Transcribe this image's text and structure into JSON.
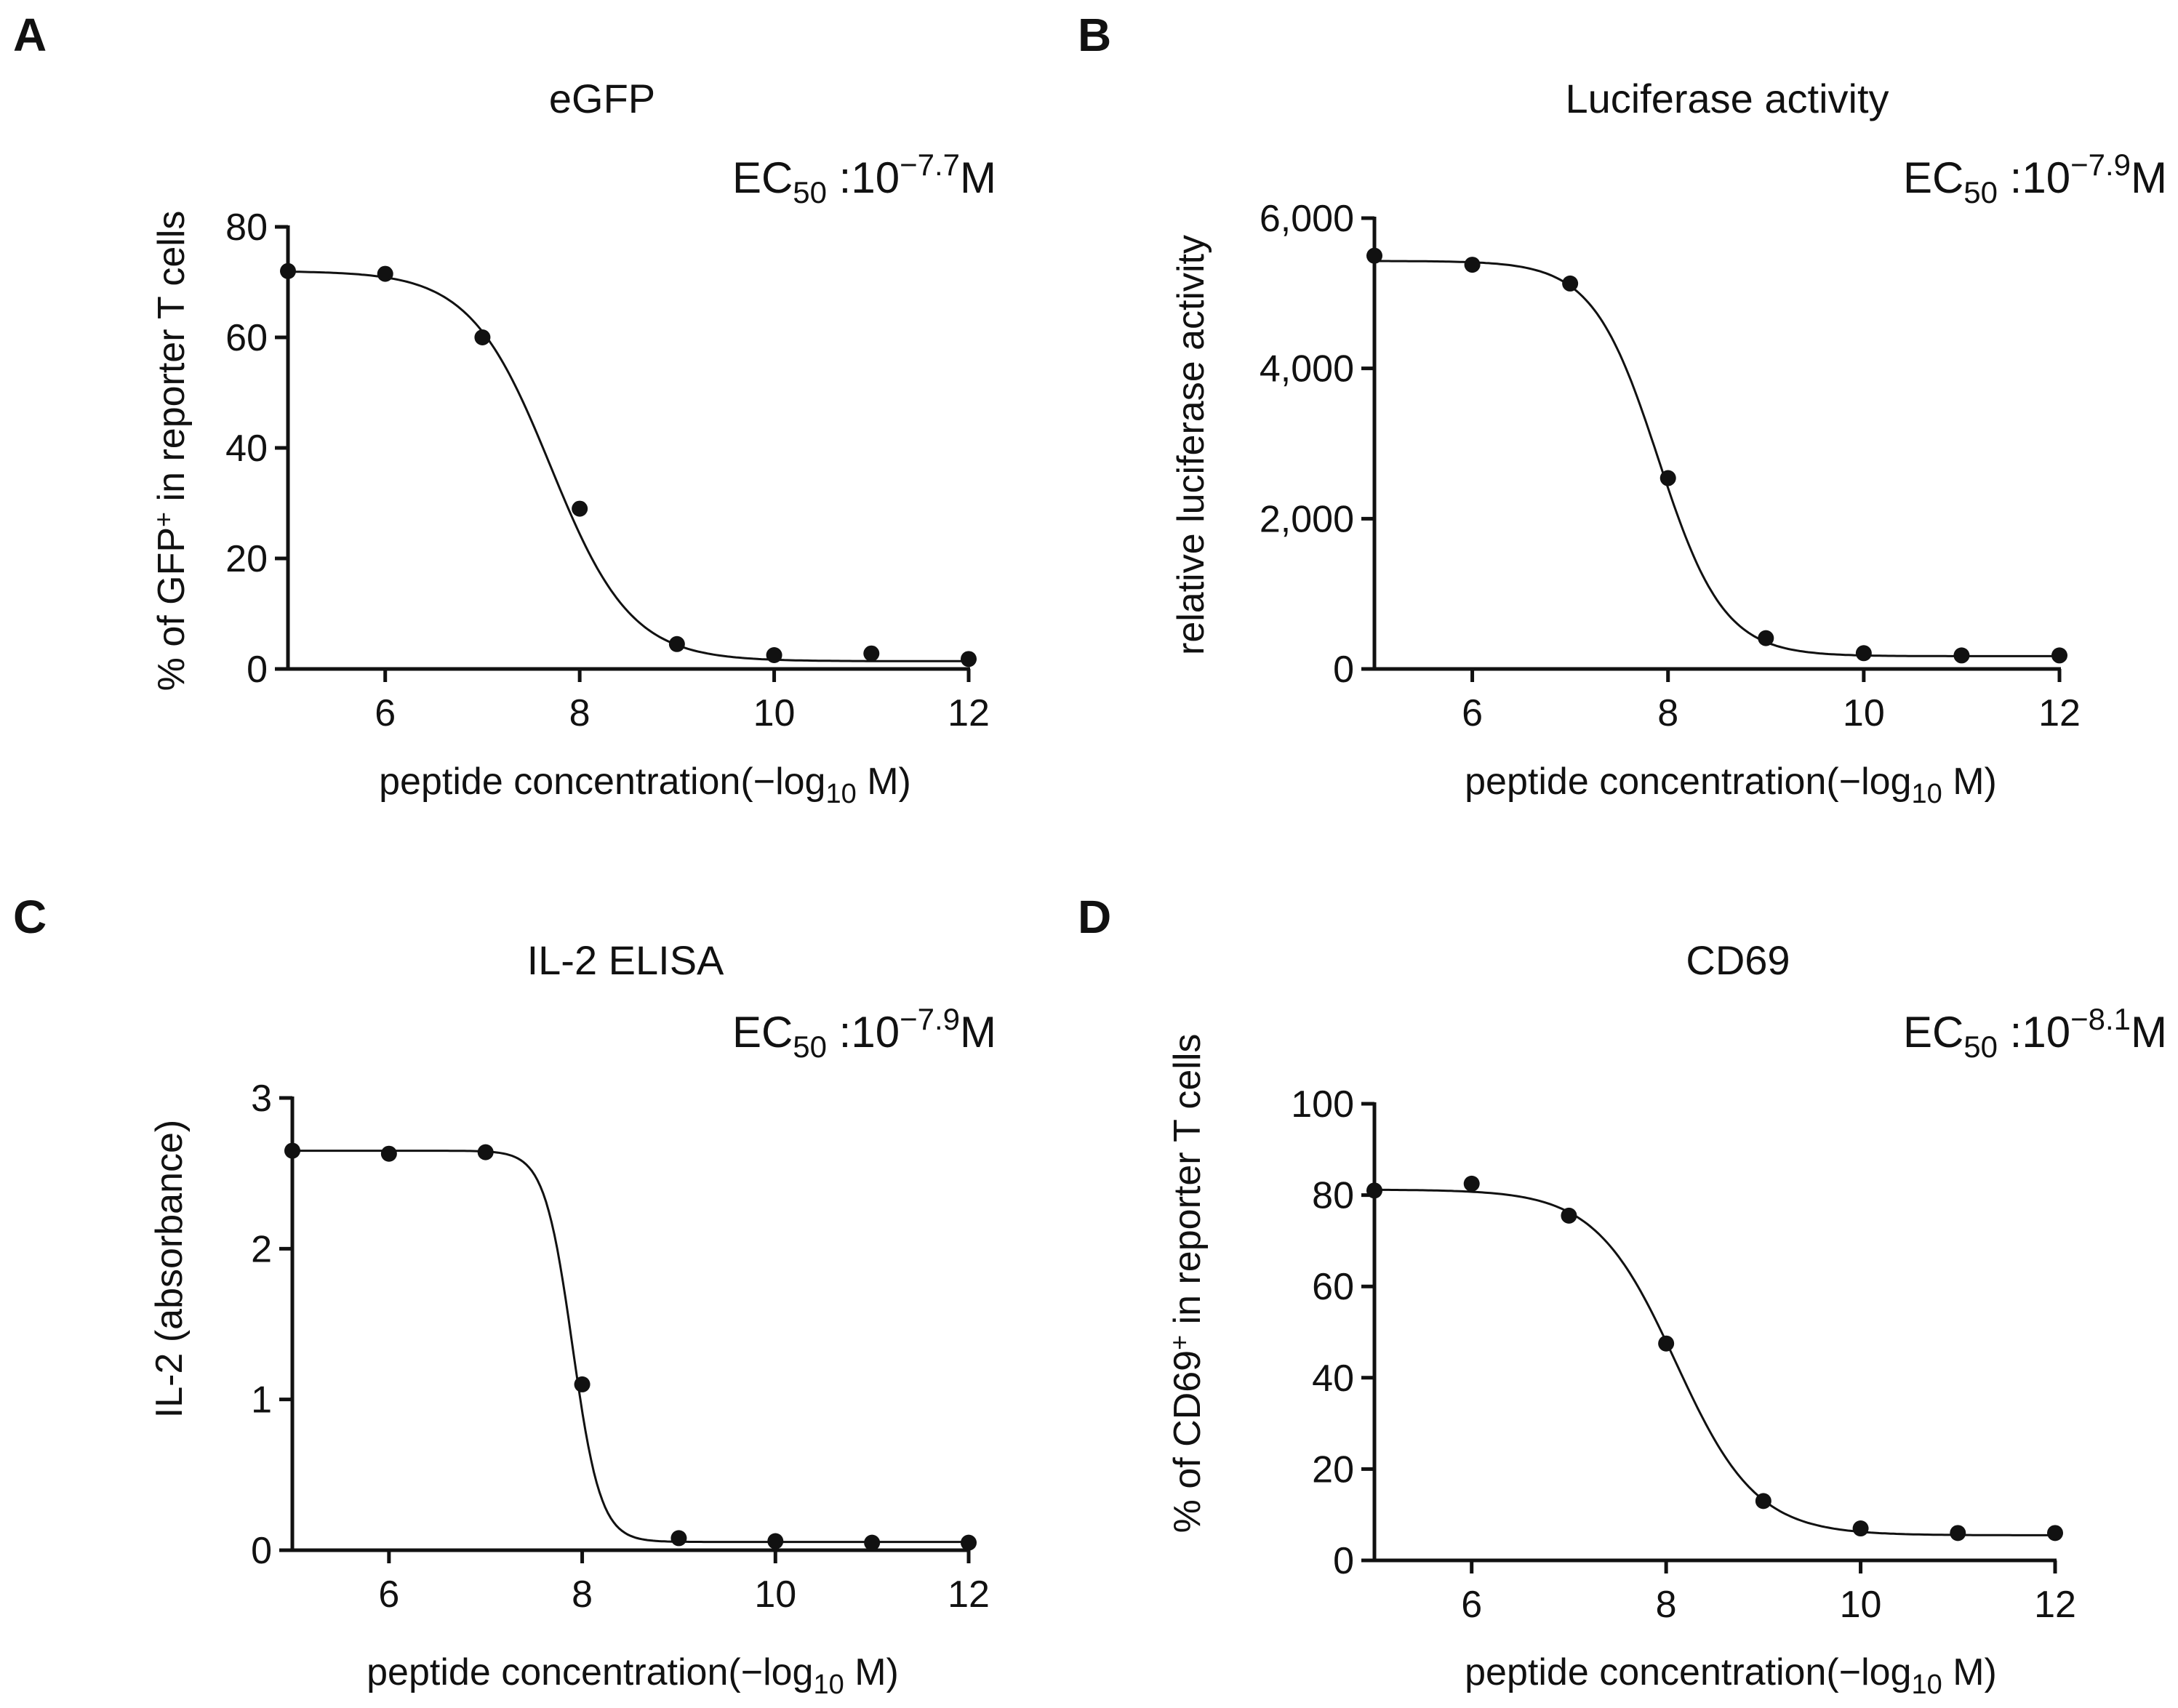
{
  "axis_parts": {
    "x_main": "peptide concentration(−log",
    "x_sub": "10",
    "x_tail": " M)",
    "ec50_prefix": "EC",
    "ec50_sub": "50",
    "ec50_mid": " :10",
    "ec50_unit": "M",
    "superscript_plus": "+"
  },
  "chart_data": [
    {
      "panel": "A",
      "type": "scatter",
      "title": "eGFP",
      "ec50_exponent": "−7.7",
      "xlabel": "peptide concentration(−log10 M)",
      "ylabel": "% of GFP+ in reporter T cells",
      "ylabel_parts": [
        "% of GFP",
        "+",
        " in reporter T cells"
      ],
      "xlim": [
        5,
        12
      ],
      "ylim": [
        0,
        80
      ],
      "xticks": [
        6,
        8,
        10,
        12
      ],
      "xtick_labels": [
        "6",
        "8",
        "10",
        "12"
      ],
      "yticks": [
        0,
        20,
        40,
        60,
        80
      ],
      "ytick_labels": [
        "0",
        "20",
        "40",
        "60",
        "80"
      ],
      "x": [
        5,
        6,
        7,
        8,
        9,
        10,
        11,
        12
      ],
      "values": [
        72,
        71.5,
        60,
        29,
        4.5,
        2.5,
        2.8,
        1.8
      ],
      "fit": {
        "top": 72,
        "bottom": 1.4,
        "logEC50": 7.7,
        "hill": 1.05
      }
    },
    {
      "panel": "B",
      "type": "scatter",
      "title": "Luciferase activity",
      "ec50_exponent": "−7.9",
      "xlabel": "peptide concentration(−log10 M)",
      "ylabel": "relative luciferase activity",
      "ylabel_parts": [
        "relative luciferase activity",
        "",
        ""
      ],
      "xlim": [
        5,
        12
      ],
      "ylim": [
        0,
        6000
      ],
      "xticks": [
        6,
        8,
        10,
        12
      ],
      "xtick_labels": [
        "6",
        "8",
        "10",
        "12"
      ],
      "yticks": [
        0,
        2000,
        4000,
        6000
      ],
      "ytick_labels": [
        "0",
        "2,000",
        "4,000",
        "6,000"
      ],
      "x": [
        5,
        6,
        7,
        8,
        9,
        10,
        11,
        12
      ],
      "values": [
        5500,
        5380,
        5130,
        2540,
        410,
        210,
        180,
        180
      ],
      "fit": {
        "top": 5430,
        "bottom": 170,
        "logEC50": 7.9,
        "hill": 1.3
      }
    },
    {
      "panel": "C",
      "type": "scatter",
      "title": "IL-2 ELISA",
      "ec50_exponent": "−7.9",
      "xlabel": "peptide concentration(−log10 M)",
      "ylabel": "IL-2 (absorbance)",
      "ylabel_parts": [
        "IL-2 (absorbance)",
        "",
        ""
      ],
      "xlim": [
        5,
        12
      ],
      "ylim": [
        0,
        3
      ],
      "xticks": [
        6,
        8,
        10,
        12
      ],
      "xtick_labels": [
        "6",
        "8",
        "10",
        "12"
      ],
      "yticks": [
        0,
        1,
        2,
        3
      ],
      "ytick_labels": [
        "0",
        "1",
        "2",
        "3"
      ],
      "x": [
        5,
        6,
        7,
        8,
        9,
        10,
        11,
        12
      ],
      "values": [
        2.65,
        2.63,
        2.64,
        1.1,
        0.08,
        0.06,
        0.05,
        0.05
      ],
      "fit": {
        "top": 2.65,
        "bottom": 0.055,
        "logEC50": 7.9,
        "hill": 3.0
      }
    },
    {
      "panel": "D",
      "type": "scatter",
      "title": "CD69",
      "ec50_exponent": "−8.1",
      "xlabel": "peptide concentration(−log10 M)",
      "ylabel": "% of CD69+ in reporter T cells",
      "ylabel_parts": [
        "% of CD69",
        "+",
        " in reporter T cells"
      ],
      "xlim": [
        5,
        12
      ],
      "ylim": [
        0,
        100
      ],
      "xticks": [
        6,
        8,
        10,
        12
      ],
      "xtick_labels": [
        "6",
        "8",
        "10",
        "12"
      ],
      "yticks": [
        0,
        20,
        40,
        60,
        80,
        100
      ],
      "ytick_labels": [
        "0",
        "20",
        "40",
        "60",
        "80",
        "100"
      ],
      "x": [
        5,
        6,
        7,
        8,
        9,
        10,
        11,
        12
      ],
      "values": [
        81,
        82.5,
        75.5,
        47.5,
        13,
        7,
        6,
        6
      ],
      "fit": {
        "top": 81.2,
        "bottom": 5.5,
        "logEC50": 8.1,
        "hill": 1.05
      }
    }
  ]
}
